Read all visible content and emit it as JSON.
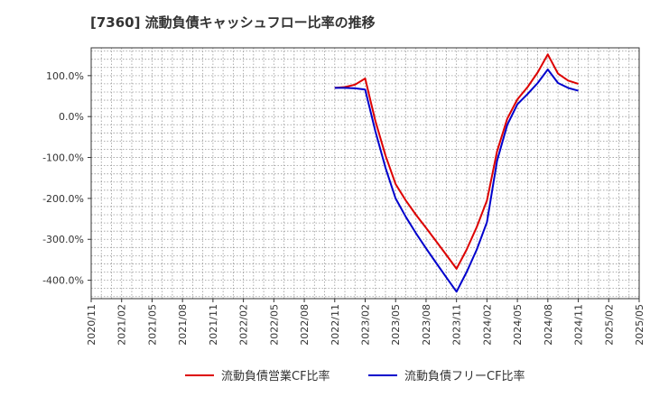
{
  "chart_data": {
    "type": "line",
    "title": "[7360]  流動負債キャッシュフロー比率の推移",
    "xlabel": "",
    "ylabel": "",
    "x_ticks": [
      "2020/11",
      "2021/02",
      "2021/05",
      "2021/08",
      "2021/11",
      "2022/02",
      "2022/05",
      "2022/08",
      "2022/11",
      "2023/02",
      "2023/05",
      "2023/08",
      "2023/11",
      "2024/02",
      "2024/05",
      "2024/08",
      "2024/11",
      "2025/02",
      "2025/05"
    ],
    "y_ticks": [
      100,
      0,
      -100,
      -200,
      -300,
      -400
    ],
    "y_tick_labels": [
      "100.0%",
      "0.0%",
      "-100.0%",
      "-200.0%",
      "-300.0%",
      "-400.0%"
    ],
    "ylim": [
      -445,
      168
    ],
    "grid": true,
    "legend_position": "bottom",
    "series": [
      {
        "name": "流動負債営業CF比率",
        "color": "#dd0000",
        "points": [
          {
            "x": "2022/11",
            "y": 70
          },
          {
            "x": "2022/12",
            "y": 72
          },
          {
            "x": "2023/01",
            "y": 78
          },
          {
            "x": "2023/02",
            "y": 93
          },
          {
            "x": "2023/03",
            "y": -10
          },
          {
            "x": "2023/04",
            "y": -95
          },
          {
            "x": "2023/05",
            "y": -165
          },
          {
            "x": "2023/06",
            "y": -205
          },
          {
            "x": "2023/07",
            "y": -240
          },
          {
            "x": "2023/08",
            "y": -272
          },
          {
            "x": "2023/09",
            "y": -305
          },
          {
            "x": "2023/10",
            "y": -338
          },
          {
            "x": "2023/11",
            "y": -372
          },
          {
            "x": "2023/12",
            "y": -325
          },
          {
            "x": "2024/01",
            "y": -270
          },
          {
            "x": "2024/02",
            "y": -205
          },
          {
            "x": "2024/03",
            "y": -85
          },
          {
            "x": "2024/04",
            "y": -5
          },
          {
            "x": "2024/05",
            "y": 42
          },
          {
            "x": "2024/06",
            "y": 72
          },
          {
            "x": "2024/07",
            "y": 108
          },
          {
            "x": "2024/08",
            "y": 152
          },
          {
            "x": "2024/09",
            "y": 105
          },
          {
            "x": "2024/10",
            "y": 88
          },
          {
            "x": "2024/11",
            "y": 80
          }
        ]
      },
      {
        "name": "流動負債フリーCF比率",
        "color": "#0000cc",
        "points": [
          {
            "x": "2022/11",
            "y": 70
          },
          {
            "x": "2022/12",
            "y": 70
          },
          {
            "x": "2023/01",
            "y": 69
          },
          {
            "x": "2023/02",
            "y": 66
          },
          {
            "x": "2023/03",
            "y": -35
          },
          {
            "x": "2023/04",
            "y": -125
          },
          {
            "x": "2023/05",
            "y": -200
          },
          {
            "x": "2023/06",
            "y": -245
          },
          {
            "x": "2023/07",
            "y": -285
          },
          {
            "x": "2023/08",
            "y": -322
          },
          {
            "x": "2023/09",
            "y": -358
          },
          {
            "x": "2023/10",
            "y": -393
          },
          {
            "x": "2023/11",
            "y": -428
          },
          {
            "x": "2023/12",
            "y": -380
          },
          {
            "x": "2024/01",
            "y": -325
          },
          {
            "x": "2024/02",
            "y": -258
          },
          {
            "x": "2024/03",
            "y": -108
          },
          {
            "x": "2024/04",
            "y": -20
          },
          {
            "x": "2024/05",
            "y": 30
          },
          {
            "x": "2024/06",
            "y": 55
          },
          {
            "x": "2024/07",
            "y": 82
          },
          {
            "x": "2024/08",
            "y": 115
          },
          {
            "x": "2024/09",
            "y": 82
          },
          {
            "x": "2024/10",
            "y": 70
          },
          {
            "x": "2024/11",
            "y": 63
          }
        ]
      }
    ]
  }
}
